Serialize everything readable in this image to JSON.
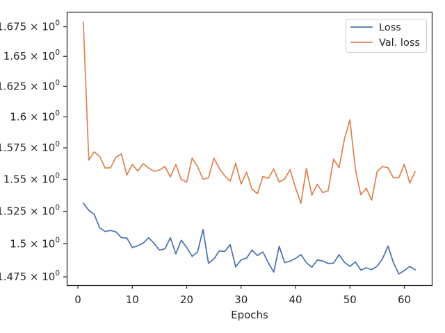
{
  "chart_data": {
    "type": "line",
    "title": "",
    "xlabel": "Epochs",
    "ylabel": "",
    "xlim": [
      -2.05,
      65.05
    ],
    "ylim": [
      1.4688,
      1.6878
    ],
    "log_scale_y": true,
    "grid": false,
    "legend_position": "upper right",
    "x_ticks": [
      0,
      10,
      20,
      30,
      40,
      50,
      60
    ],
    "x_tick_labels": [
      "0",
      "10",
      "20",
      "30",
      "40",
      "50",
      "60"
    ],
    "y_ticks": [
      1.475,
      1.5,
      1.525,
      1.55,
      1.575,
      1.6,
      1.625,
      1.65,
      1.675
    ],
    "y_tick_labels": [
      "1.475 × 10⁰",
      "1.5 × 10⁰",
      "1.525 × 10⁰",
      "1.55 × 10⁰",
      "1.575 × 10⁰",
      "1.6 × 10⁰",
      "1.625 × 10⁰",
      "1.65 × 10⁰",
      "1.675 × 10⁰"
    ],
    "x": [
      1,
      2,
      3,
      4,
      5,
      6,
      7,
      8,
      9,
      10,
      11,
      12,
      13,
      14,
      15,
      16,
      17,
      18,
      19,
      20,
      21,
      22,
      23,
      24,
      25,
      26,
      27,
      28,
      29,
      30,
      31,
      32,
      33,
      34,
      35,
      36,
      37,
      38,
      39,
      40,
      41,
      42,
      43,
      44,
      45,
      46,
      47,
      48,
      49,
      50,
      51,
      52,
      53,
      54,
      55,
      56,
      57,
      58,
      59,
      60,
      61,
      62
    ],
    "series": [
      {
        "name": "Loss",
        "color": "#4c72b0",
        "values": [
          1.5313,
          1.5257,
          1.5227,
          1.5122,
          1.5094,
          1.5102,
          1.5091,
          1.5047,
          1.5044,
          1.4971,
          1.4985,
          1.5005,
          1.5046,
          1.5004,
          1.4951,
          1.4962,
          1.5047,
          1.4923,
          1.5027,
          1.4973,
          1.4904,
          1.4938,
          1.5109,
          1.4852,
          1.4885,
          1.4946,
          1.4942,
          1.4994,
          1.4825,
          1.4878,
          1.4891,
          1.4952,
          1.4911,
          1.4938,
          1.4856,
          1.4786,
          1.4981,
          1.4857,
          1.4868,
          1.4889,
          1.4918,
          1.4857,
          1.4822,
          1.4877,
          1.4869,
          1.4851,
          1.4853,
          1.4917,
          1.4859,
          1.4829,
          1.4862,
          1.4801,
          1.4818,
          1.4804,
          1.4829,
          1.4887,
          1.4982,
          1.4857,
          1.4772,
          1.4797,
          1.4828,
          1.4803
        ]
      },
      {
        "name": "Val. loss",
        "color": "#dd8452",
        "values": [
          1.6787,
          1.5652,
          1.5718,
          1.5682,
          1.5589,
          1.5591,
          1.5676,
          1.5701,
          1.5534,
          1.5618,
          1.5566,
          1.5623,
          1.5589,
          1.5563,
          1.5574,
          1.5601,
          1.5519,
          1.5618,
          1.5498,
          1.5478,
          1.5668,
          1.5601,
          1.5501,
          1.5511,
          1.5668,
          1.5584,
          1.5527,
          1.5486,
          1.5628,
          1.5463,
          1.5556,
          1.5423,
          1.5387,
          1.5522,
          1.5507,
          1.5582,
          1.5478,
          1.5502,
          1.5577,
          1.5434,
          1.5312,
          1.5587,
          1.5376,
          1.5461,
          1.5396,
          1.5411,
          1.5661,
          1.5591,
          1.5822,
          1.5977,
          1.5581,
          1.5379,
          1.5431,
          1.5336,
          1.5561,
          1.5601,
          1.5591,
          1.5511,
          1.5513,
          1.5618,
          1.5471,
          1.5561
        ]
      }
    ]
  }
}
